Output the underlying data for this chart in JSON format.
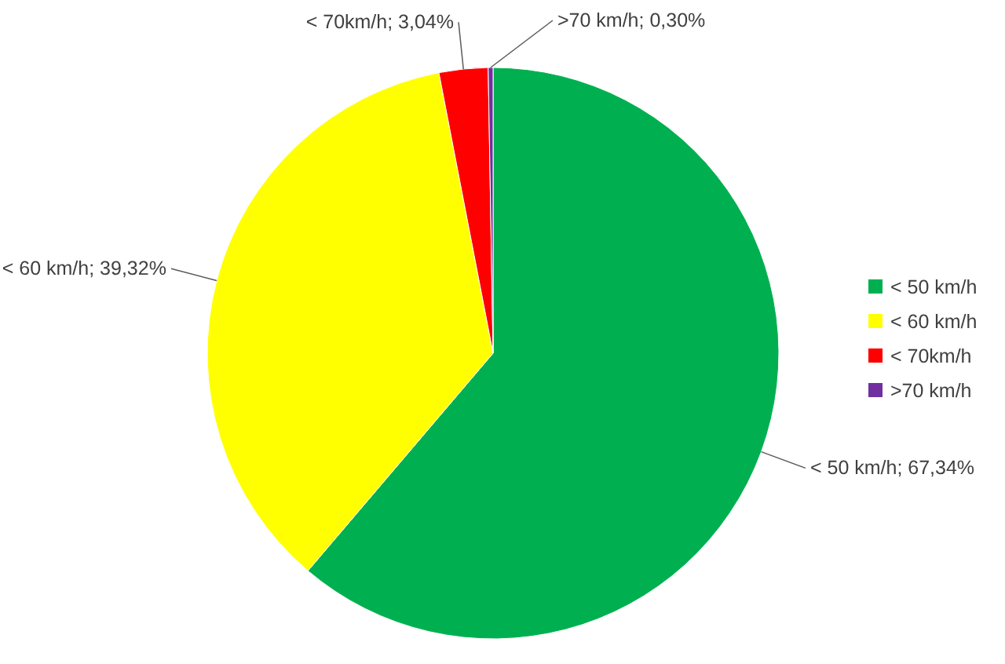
{
  "chart_data": {
    "type": "pie",
    "categories": [
      "< 50 km/h",
      "< 60 km/h",
      "< 70km/h",
      ">70 km/h"
    ],
    "values": [
      67.34,
      39.32,
      3.04,
      0.3
    ],
    "colors": [
      "#00b050",
      "#ffff00",
      "#ff0000",
      "#7030a0"
    ],
    "value_labels": [
      "< 50 km/h; 67,34%",
      "< 60 km/h; 39,32%",
      "< 70km/h; 3,04%",
      ">70 km/h; 0,30%"
    ],
    "legend": "right"
  }
}
